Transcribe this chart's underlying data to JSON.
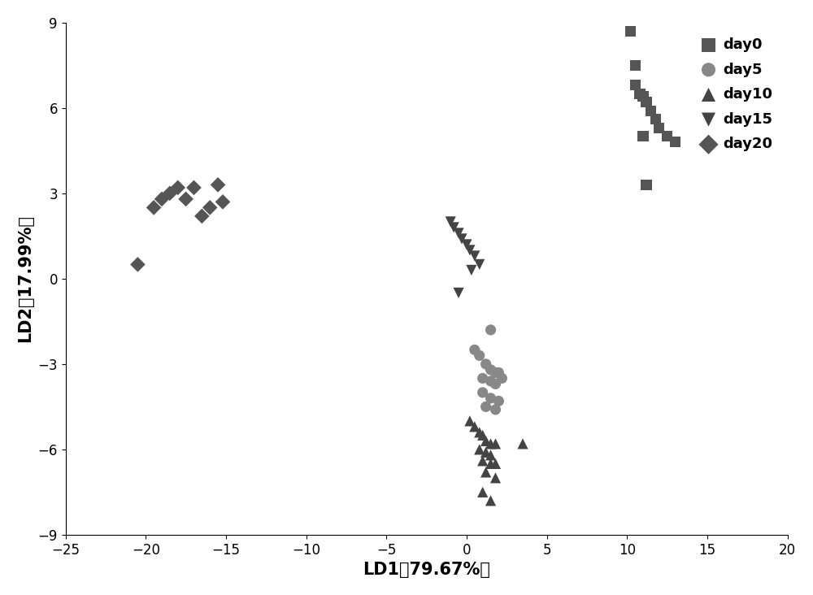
{
  "day0": {
    "x": [
      10.2,
      10.5,
      10.8,
      11.0,
      11.2,
      11.5,
      11.8,
      12.0,
      12.5,
      10.5,
      11.0,
      13.0,
      11.2
    ],
    "y": [
      8.7,
      7.5,
      6.5,
      6.4,
      6.2,
      5.9,
      5.6,
      5.3,
      5.0,
      6.8,
      5.0,
      4.8,
      3.3
    ],
    "color": "#555555",
    "marker": "s",
    "label": "day0",
    "size": 90
  },
  "day5": {
    "x": [
      1.5,
      0.5,
      0.8,
      1.2,
      1.5,
      1.8,
      2.0,
      1.0,
      1.5,
      1.8,
      2.2,
      1.0,
      1.5,
      2.0,
      1.2,
      1.8
    ],
    "y": [
      -1.8,
      -2.5,
      -2.7,
      -3.0,
      -3.2,
      -3.3,
      -3.3,
      -3.5,
      -3.6,
      -3.7,
      -3.5,
      -4.0,
      -4.2,
      -4.3,
      -4.5,
      -4.6
    ],
    "color": "#888888",
    "marker": "o",
    "label": "day5",
    "size": 90
  },
  "day10": {
    "x": [
      0.2,
      0.5,
      0.8,
      1.0,
      1.2,
      1.5,
      1.8,
      0.8,
      1.2,
      1.5,
      1.0,
      1.5,
      1.8,
      1.2,
      1.8,
      3.5,
      1.0,
      1.5
    ],
    "y": [
      -5.0,
      -5.2,
      -5.4,
      -5.5,
      -5.7,
      -5.8,
      -5.8,
      -6.0,
      -6.1,
      -6.2,
      -6.4,
      -6.5,
      -6.5,
      -6.8,
      -7.0,
      -5.8,
      -7.5,
      -7.8
    ],
    "color": "#444444",
    "marker": "^",
    "label": "day10",
    "size": 90
  },
  "day15": {
    "x": [
      -1.0,
      -0.8,
      -0.5,
      -0.3,
      0.0,
      0.2,
      0.5,
      0.8,
      0.3,
      -0.5
    ],
    "y": [
      2.0,
      1.8,
      1.6,
      1.4,
      1.2,
      1.0,
      0.8,
      0.5,
      0.3,
      -0.5
    ],
    "color": "#444444",
    "marker": "v",
    "label": "day15",
    "size": 90
  },
  "day20": {
    "x": [
      -20.5,
      -19.5,
      -19.0,
      -18.5,
      -18.0,
      -17.5,
      -17.0,
      -16.5,
      -16.0,
      -15.5,
      -15.2
    ],
    "y": [
      0.5,
      2.5,
      2.8,
      3.0,
      3.2,
      2.8,
      3.2,
      2.2,
      2.5,
      3.3,
      2.7
    ],
    "color": "#555555",
    "marker": "D",
    "label": "day20",
    "size": 90
  },
  "xlabel": "LD1（79.67%）",
  "ylabel": "LD2（17.99%）",
  "xlim": [
    -25,
    20
  ],
  "ylim": [
    -9,
    9
  ],
  "xticks": [
    -25,
    -20,
    -15,
    -10,
    -5,
    0,
    5,
    10,
    15,
    20
  ],
  "yticks": [
    -9,
    -6,
    -3,
    0,
    3,
    6,
    9
  ],
  "background_color": "#ffffff",
  "legend_fontsize": 13,
  "axis_label_fontsize": 15,
  "tick_fontsize": 12
}
